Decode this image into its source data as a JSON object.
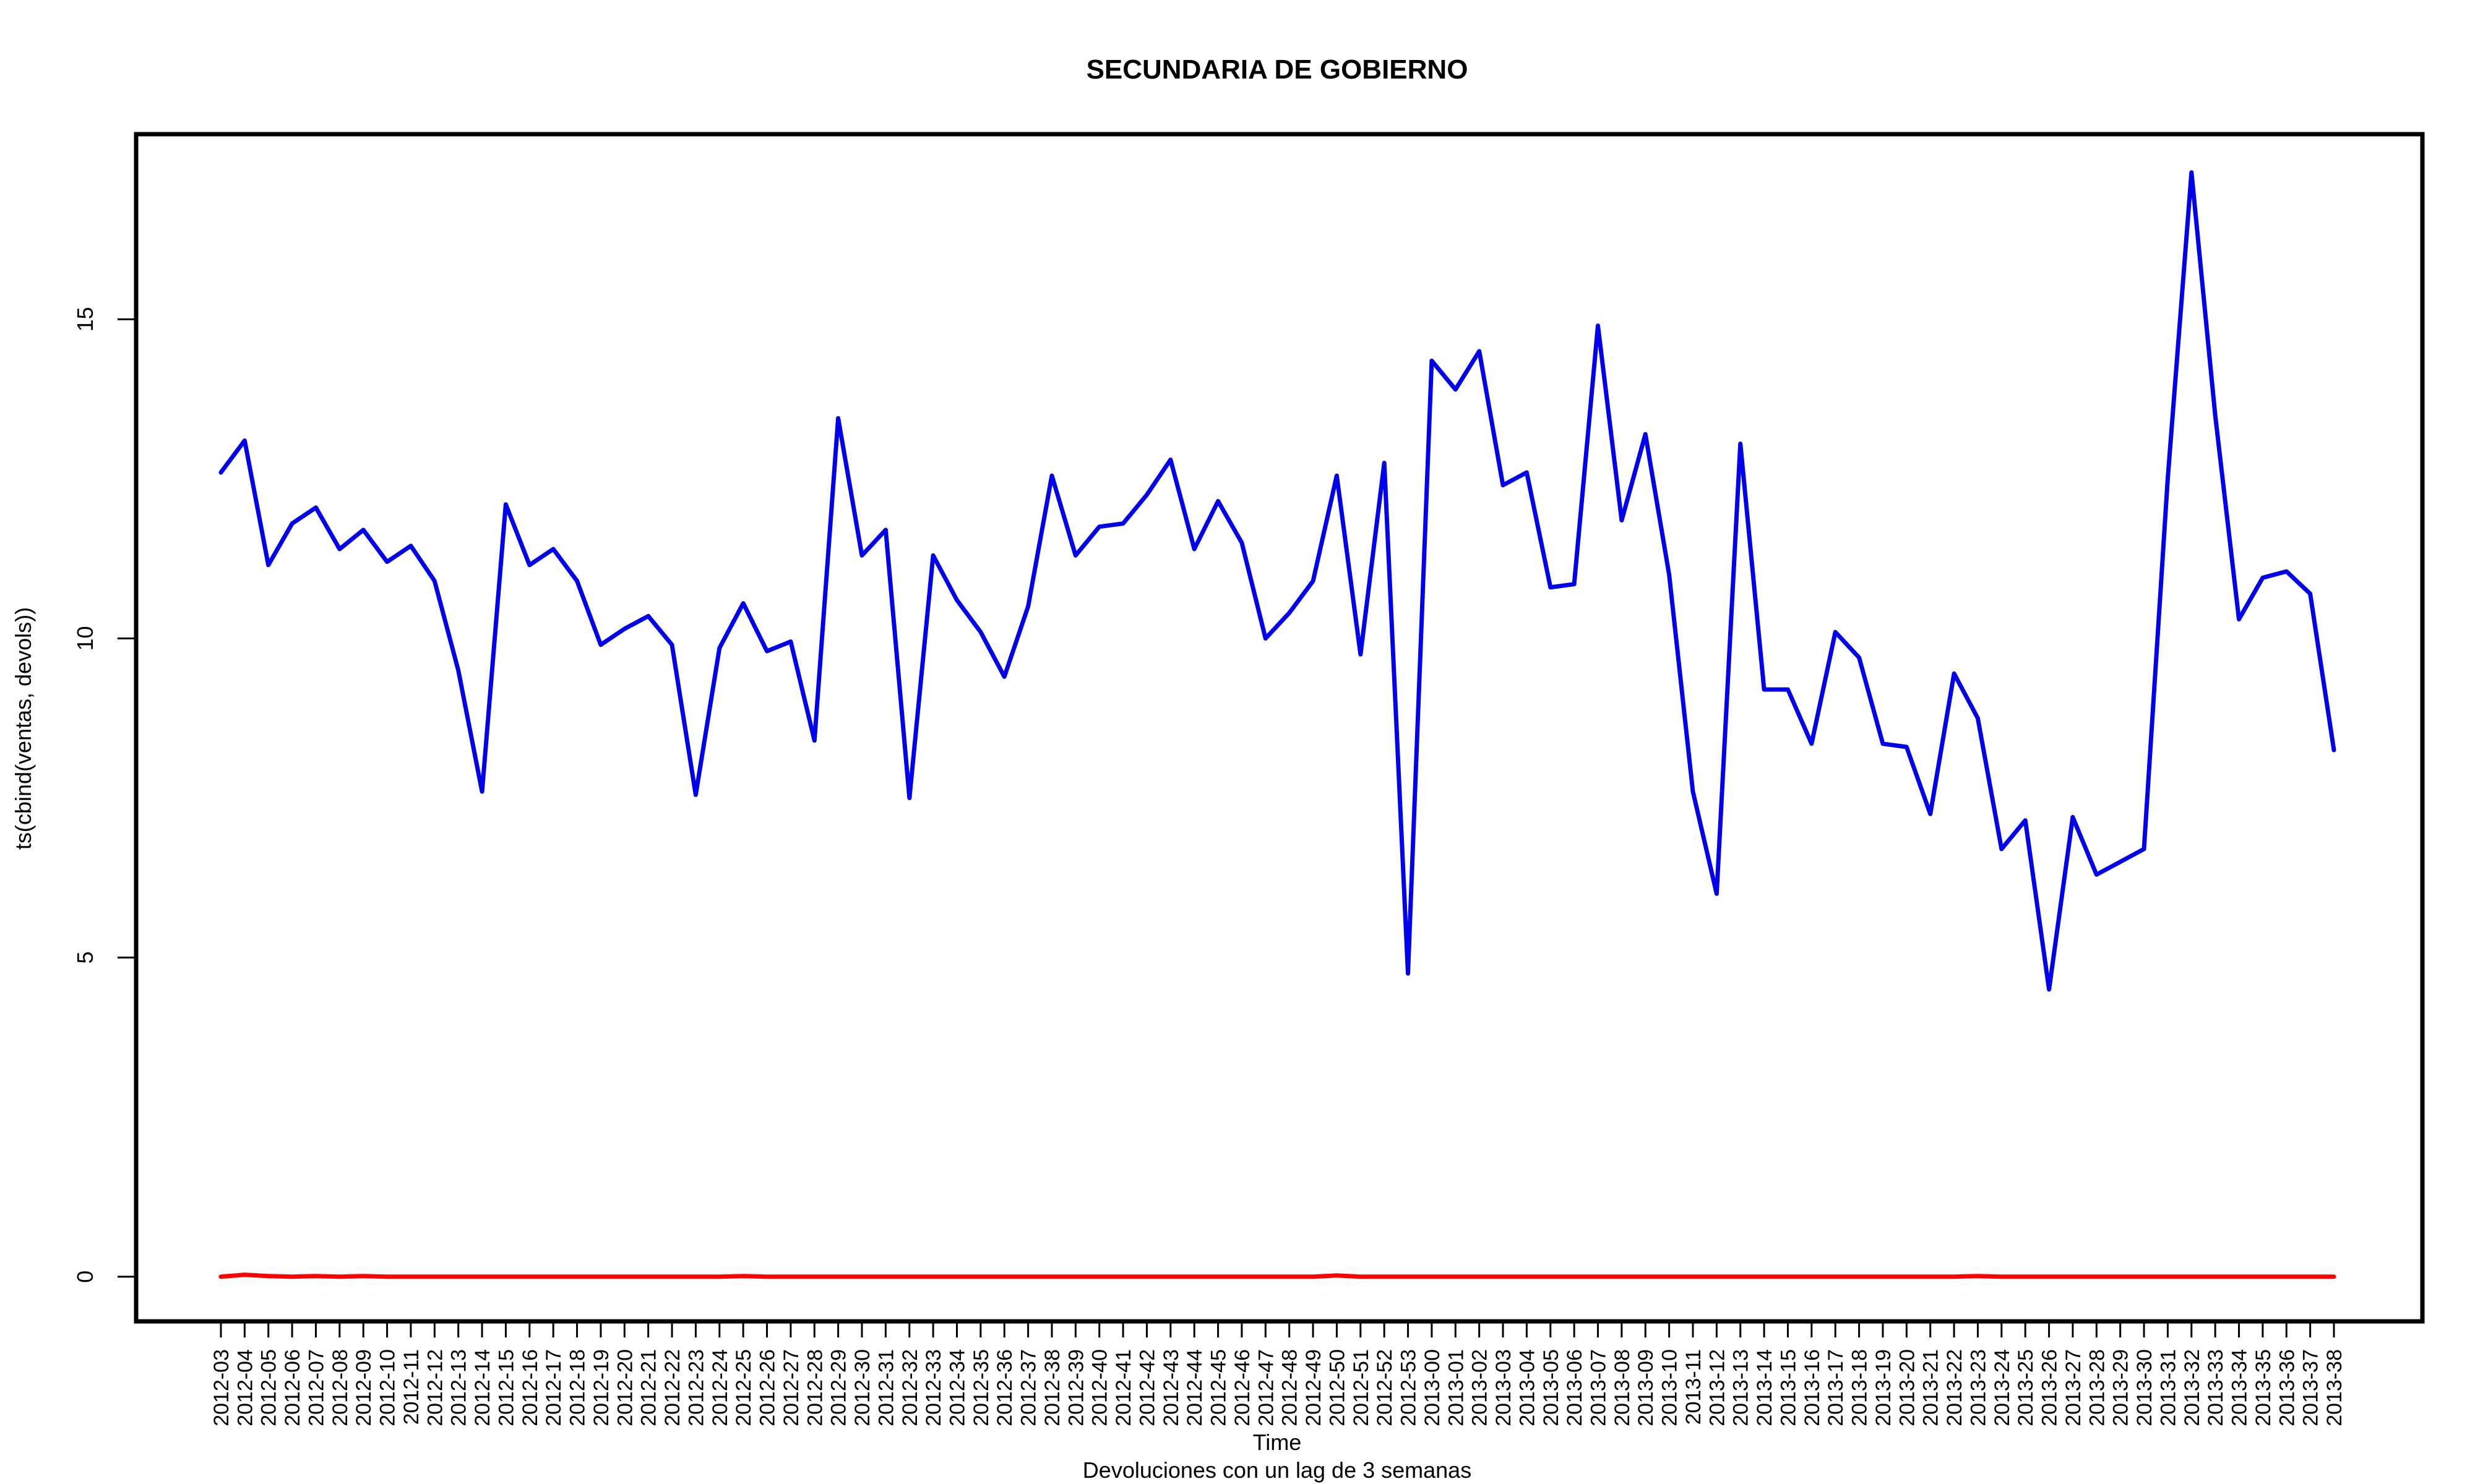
{
  "chart_data": {
    "type": "line",
    "title": "SECUNDARIA DE GOBIERNO",
    "xlabel": "Time",
    "ylabel": "ts(cbind(ventas, devols))",
    "subtitle": "Devoluciones con un lag de 3 semanas",
    "ylim": [
      -0.7,
      17.9
    ],
    "yticks": [
      0,
      5,
      10,
      15
    ],
    "grid": false,
    "legend": "none",
    "categories": [
      "2012-03",
      "2012-04",
      "2012-05",
      "2012-06",
      "2012-07",
      "2012-08",
      "2012-09",
      "2012-10",
      "2012-11",
      "2012-12",
      "2012-13",
      "2012-14",
      "2012-15",
      "2012-16",
      "2012-17",
      "2012-18",
      "2012-19",
      "2012-20",
      "2012-21",
      "2012-22",
      "2012-23",
      "2012-24",
      "2012-25",
      "2012-26",
      "2012-27",
      "2012-28",
      "2012-29",
      "2012-30",
      "2012-31",
      "2012-32",
      "2012-33",
      "2012-34",
      "2012-35",
      "2012-36",
      "2012-37",
      "2012-38",
      "2012-39",
      "2012-40",
      "2012-41",
      "2012-42",
      "2012-43",
      "2012-44",
      "2012-45",
      "2012-46",
      "2012-47",
      "2012-48",
      "2012-49",
      "2012-50",
      "2012-51",
      "2012-52",
      "2012-53",
      "2013-00",
      "2013-01",
      "2013-02",
      "2013-03",
      "2013-04",
      "2013-05",
      "2013-06",
      "2013-07",
      "2013-08",
      "2013-09",
      "2013-10",
      "2013-11",
      "2013-12",
      "2013-13",
      "2013-14",
      "2013-15",
      "2013-16",
      "2013-17",
      "2013-18",
      "2013-19",
      "2013-20",
      "2013-21",
      "2013-22",
      "2013-23",
      "2013-24",
      "2013-25",
      "2013-26",
      "2013-27",
      "2013-28",
      "2013-29",
      "2013-30",
      "2013-31",
      "2013-32",
      "2013-33",
      "2013-34",
      "2013-35",
      "2013-36",
      "2013-37",
      "2013-38"
    ],
    "series": [
      {
        "color": "#0000ee",
        "values": [
          12.6,
          13.1,
          11.15,
          11.8,
          12.05,
          11.4,
          11.7,
          11.2,
          11.45,
          10.9,
          9.5,
          7.6,
          12.1,
          11.15,
          11.4,
          10.9,
          9.9,
          10.15,
          10.35,
          9.9,
          7.55,
          9.85,
          10.55,
          9.8,
          9.95,
          8.4,
          13.45,
          11.3,
          11.7,
          7.5,
          11.3,
          10.6,
          10.1,
          9.4,
          10.5,
          12.55,
          11.3,
          11.75,
          11.8,
          12.25,
          12.8,
          11.4,
          12.15,
          11.5,
          10.0,
          10.4,
          10.9,
          12.55,
          9.75,
          12.75,
          4.75,
          14.35,
          13.9,
          14.5,
          12.4,
          12.6,
          10.8,
          10.85,
          14.9,
          11.85,
          13.2,
          11.0,
          7.6,
          6.0,
          13.05,
          9.2,
          9.2,
          8.35,
          10.1,
          9.7,
          8.35,
          8.3,
          7.25,
          9.45,
          8.75,
          6.7,
          7.15,
          4.5,
          7.2,
          6.3,
          6.5,
          6.7,
          12.5,
          17.3,
          13.5,
          10.3,
          10.95,
          11.05,
          10.7,
          8.25
        ]
      },
      {
        "color": "#ff0000",
        "values": [
          0.0,
          0.03,
          0.01,
          0.0,
          0.01,
          0.0,
          0.01,
          0.0,
          0.0,
          0.0,
          0.0,
          0.0,
          0.0,
          0.0,
          0.0,
          0.0,
          0.0,
          0.0,
          0.0,
          0.0,
          0.0,
          0.0,
          0.01,
          0.0,
          0.0,
          0.0,
          0.0,
          0.0,
          0.0,
          0.0,
          0.0,
          0.0,
          0.0,
          0.0,
          0.0,
          0.0,
          0.0,
          0.0,
          0.0,
          0.0,
          0.0,
          0.0,
          0.0,
          0.0,
          0.0,
          0.0,
          0.0,
          0.02,
          0.0,
          0.0,
          0.0,
          0.0,
          0.0,
          0.0,
          0.0,
          0.0,
          0.0,
          0.0,
          0.0,
          0.0,
          0.0,
          0.0,
          0.0,
          0.0,
          0.0,
          0.0,
          0.0,
          0.0,
          0.0,
          0.0,
          0.0,
          0.0,
          0.0,
          0.0,
          0.01,
          0.0,
          0.0,
          0.0,
          0.0,
          0.0,
          0.0,
          0.0,
          0.0,
          0.0,
          0.0,
          0.0,
          0.0,
          0.0,
          0.0,
          0.0
        ]
      }
    ]
  }
}
